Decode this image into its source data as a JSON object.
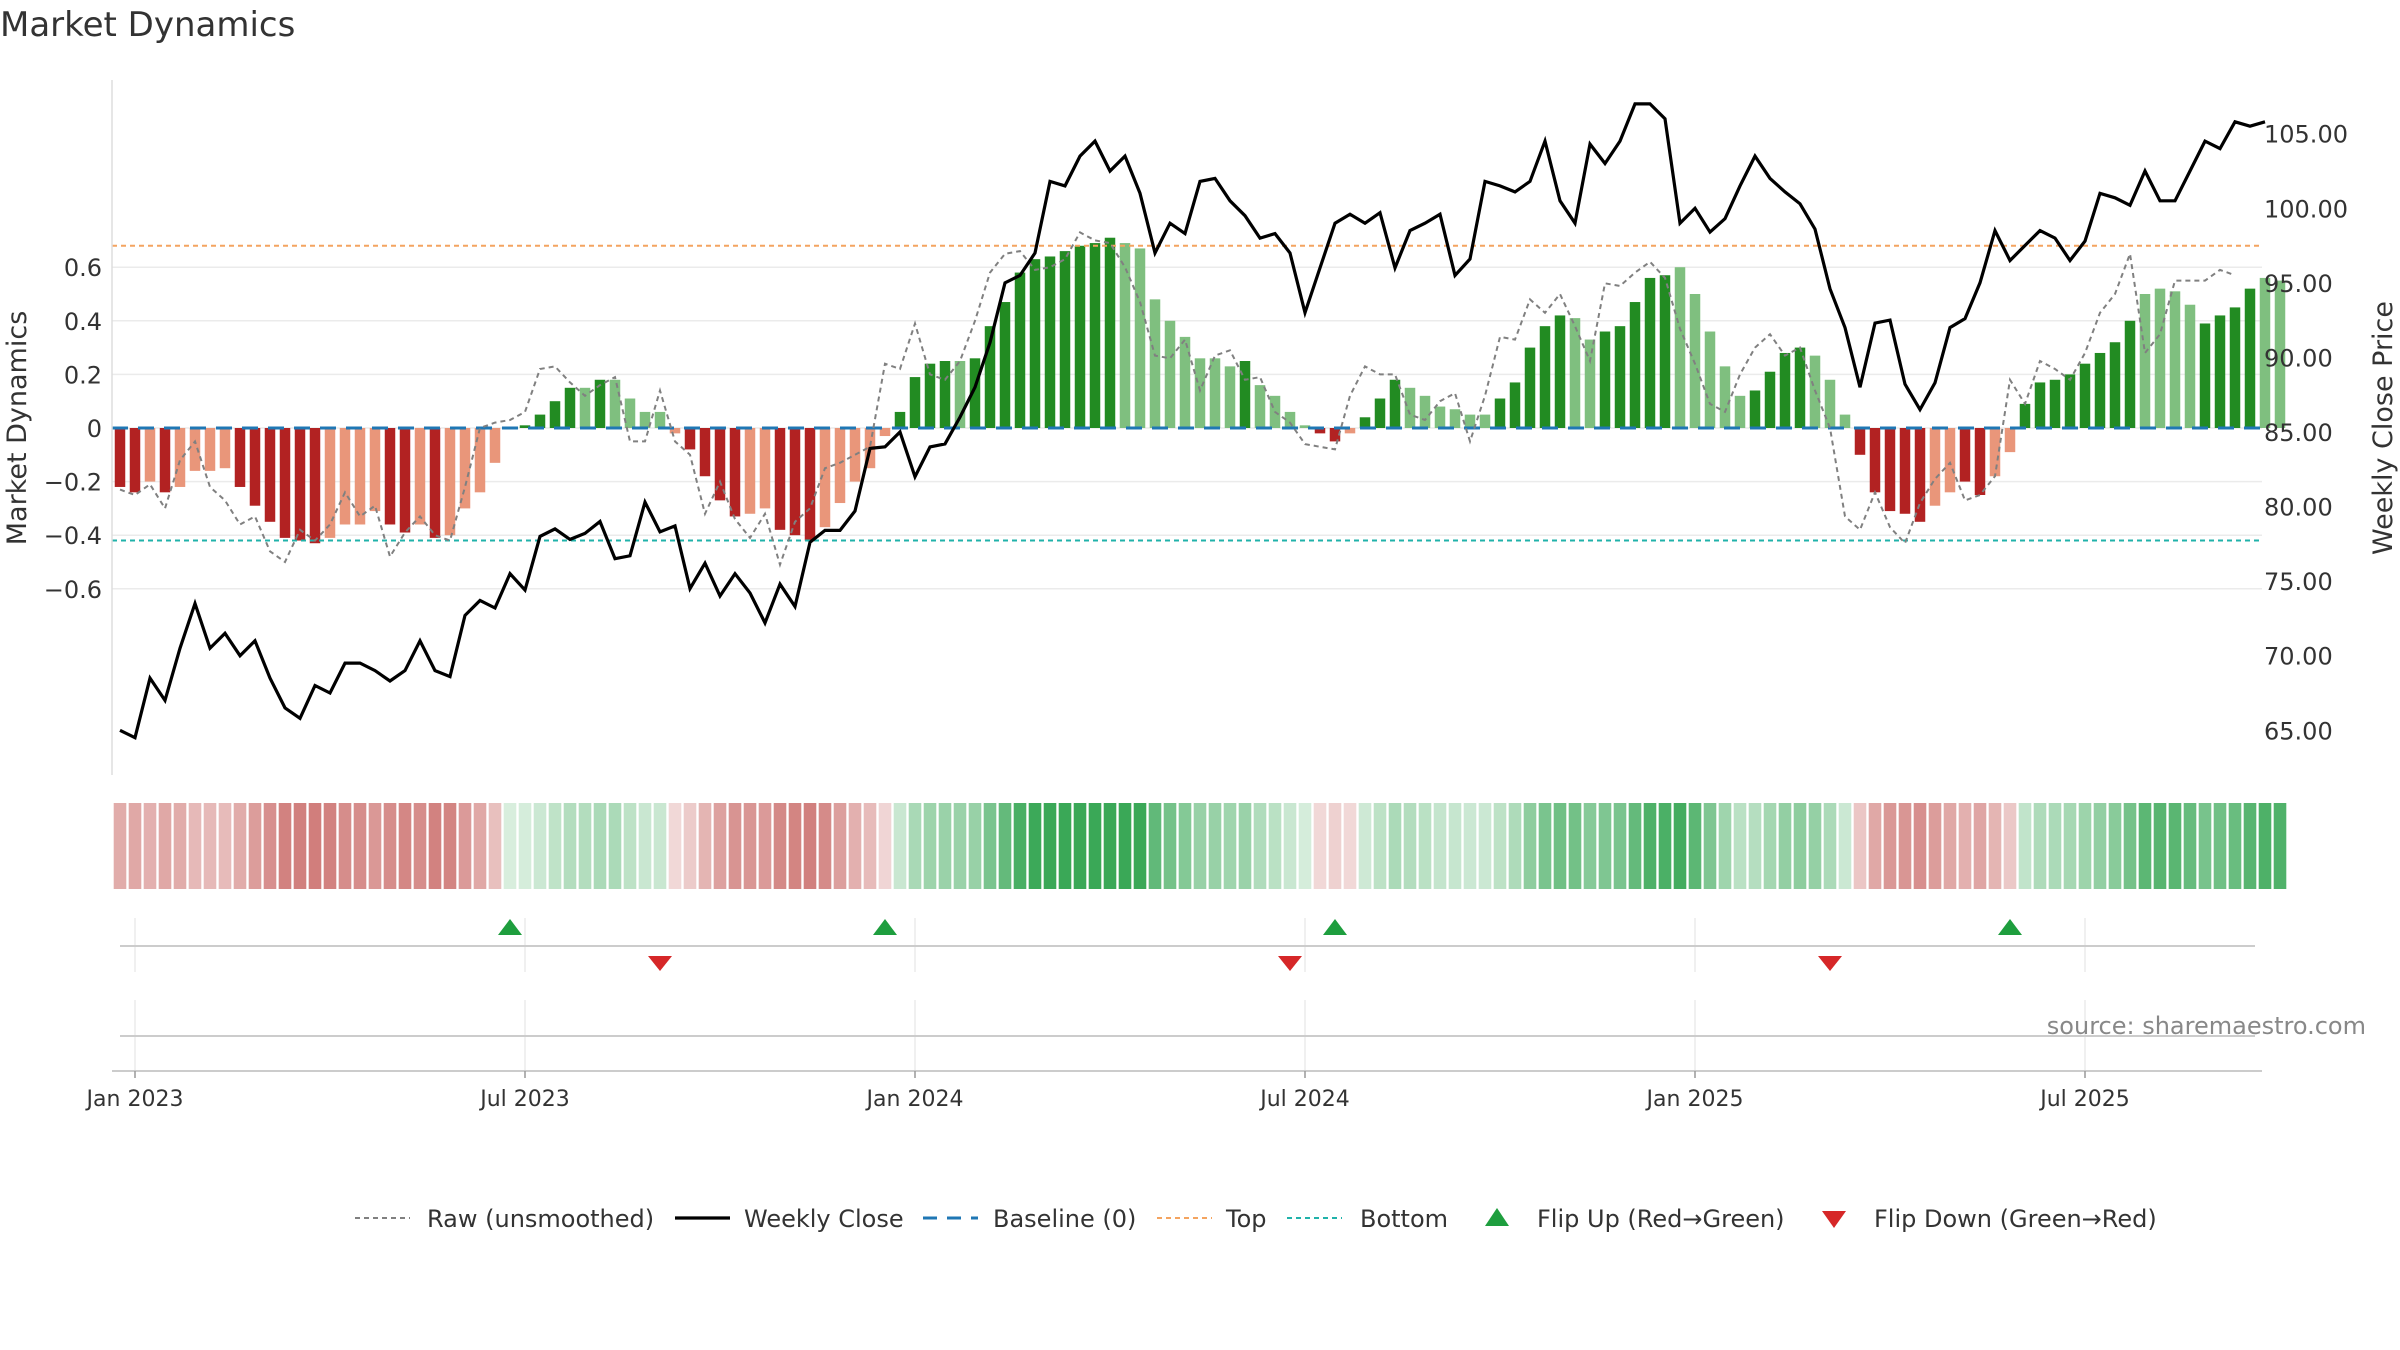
{
  "title": "Market Dynamics",
  "source": "source: sharemaestro.com",
  "colors": {
    "strong_green": "#228b22",
    "light_green": "#7fbf7f",
    "strong_red": "#b22222",
    "light_red": "#e9967a",
    "top_line": "#f4a460",
    "bottom_line": "#20b2aa",
    "baseline": "#1f77b4",
    "raw": "#808080",
    "close": "#000000",
    "flip_up": "#1e9e3e",
    "flip_down": "#d62728"
  },
  "chart_data": [
    {
      "type": "bar",
      "name": "main",
      "ylabel_left": "Market Dynamics",
      "ylabel_right": "Weekly Close Price",
      "ylim_left": [
        -0.77,
        0.77
      ],
      "ylim_right": [
        62.0,
        108.6
      ],
      "left_ticks": [
        0.6,
        0.4,
        0.2,
        0,
        -0.2,
        -0.4,
        -0.6
      ],
      "left_tick_labels": [
        "0.6",
        "0.4",
        "0.2",
        "0",
        "−0.2",
        "−0.4",
        "−0.6"
      ],
      "right_ticks": [
        105,
        100,
        95,
        90,
        85,
        80,
        75,
        70,
        65
      ],
      "right_tick_labels": [
        "105.00",
        "100.00",
        "95.00",
        "90.00",
        "85.00",
        "80.00",
        "75.00",
        "70.00",
        "65.00"
      ],
      "top_level": 0.68,
      "bottom_level": -0.42,
      "x_start_week": 0,
      "x_end_week": 143,
      "week_start_date": "2022-12-26",
      "dynamics": [
        -0.22,
        -0.24,
        -0.2,
        -0.24,
        -0.22,
        -0.16,
        -0.16,
        -0.15,
        -0.22,
        -0.29,
        -0.35,
        -0.41,
        -0.42,
        -0.43,
        -0.41,
        -0.36,
        -0.36,
        -0.31,
        -0.36,
        -0.39,
        -0.36,
        -0.41,
        -0.4,
        -0.3,
        -0.24,
        -0.13,
        0.0,
        0.01,
        0.05,
        0.1,
        0.15,
        0.15,
        0.18,
        0.18,
        0.11,
        0.06,
        0.06,
        -0.02,
        -0.08,
        -0.18,
        -0.27,
        -0.33,
        -0.32,
        -0.3,
        -0.38,
        -0.4,
        -0.42,
        -0.37,
        -0.28,
        -0.2,
        -0.15,
        -0.03,
        0.06,
        0.19,
        0.24,
        0.25,
        0.25,
        0.26,
        0.38,
        0.47,
        0.58,
        0.63,
        0.64,
        0.66,
        0.68,
        0.69,
        0.71,
        0.69,
        0.67,
        0.48,
        0.4,
        0.34,
        0.26,
        0.26,
        0.23,
        0.25,
        0.16,
        0.12,
        0.06,
        0.01,
        -0.02,
        -0.05,
        -0.02,
        0.04,
        0.11,
        0.18,
        0.15,
        0.12,
        0.08,
        0.07,
        0.05,
        0.05,
        0.11,
        0.17,
        0.3,
        0.38,
        0.42,
        0.41,
        0.33,
        0.36,
        0.38,
        0.47,
        0.56,
        0.57,
        0.6,
        0.5,
        0.36,
        0.23,
        0.12,
        0.14,
        0.21,
        0.28,
        0.3,
        0.27,
        0.18,
        0.05,
        -0.1,
        -0.24,
        -0.31,
        -0.32,
        -0.35,
        -0.29,
        -0.24,
        -0.2,
        -0.25,
        -0.18,
        -0.09,
        0.09,
        0.17,
        0.18,
        0.2,
        0.24,
        0.28,
        0.32,
        0.4,
        0.5,
        0.52,
        0.51,
        0.46,
        0.39,
        0.42,
        0.45,
        0.52,
        0.56,
        0.55
      ],
      "dynamics_shade": [
        "s",
        "s",
        "l",
        "s",
        "l",
        "l",
        "l",
        "l",
        "s",
        "s",
        "s",
        "s",
        "s",
        "s",
        "l",
        "l",
        "l",
        "l",
        "s",
        "s",
        "l",
        "s",
        "l",
        "l",
        "l",
        "l",
        "l",
        "s",
        "s",
        "s",
        "s",
        "l",
        "s",
        "l",
        "l",
        "l",
        "l",
        "l",
        "s",
        "s",
        "s",
        "s",
        "l",
        "l",
        "s",
        "s",
        "s",
        "l",
        "l",
        "l",
        "l",
        "l",
        "s",
        "s",
        "s",
        "s",
        "l",
        "s",
        "s",
        "s",
        "s",
        "s",
        "s",
        "s",
        "s",
        "s",
        "s",
        "l",
        "l",
        "l",
        "l",
        "l",
        "l",
        "l",
        "l",
        "s",
        "l",
        "l",
        "l",
        "l",
        "s",
        "s",
        "l",
        "s",
        "s",
        "s",
        "l",
        "l",
        "l",
        "l",
        "l",
        "l",
        "s",
        "s",
        "s",
        "s",
        "s",
        "l",
        "l",
        "s",
        "s",
        "s",
        "s",
        "s",
        "l",
        "l",
        "l",
        "l",
        "l",
        "s",
        "s",
        "s",
        "s",
        "l",
        "l",
        "l",
        "s",
        "s",
        "s",
        "s",
        "s",
        "l",
        "l",
        "s",
        "s",
        "l",
        "l",
        "s",
        "s",
        "s",
        "s",
        "s",
        "s",
        "s",
        "s",
        "l",
        "l",
        "l",
        "l",
        "s",
        "s",
        "s",
        "s",
        "l"
      ],
      "raw": [
        -0.23,
        -0.25,
        -0.21,
        -0.3,
        -0.12,
        -0.05,
        -0.22,
        -0.27,
        -0.36,
        -0.33,
        -0.46,
        -0.5,
        -0.38,
        -0.42,
        -0.36,
        -0.24,
        -0.33,
        -0.29,
        -0.48,
        -0.39,
        -0.33,
        -0.4,
        -0.42,
        -0.22,
        0.0,
        0.02,
        0.03,
        0.06,
        0.22,
        0.23,
        0.17,
        0.12,
        0.16,
        0.19,
        -0.05,
        -0.05,
        0.14,
        -0.05,
        -0.1,
        -0.32,
        -0.2,
        -0.34,
        -0.41,
        -0.32,
        -0.51,
        -0.35,
        -0.3,
        -0.15,
        -0.13,
        -0.1,
        -0.07,
        0.24,
        0.22,
        0.39,
        0.2,
        0.18,
        0.25,
        0.4,
        0.58,
        0.65,
        0.66,
        0.59,
        0.6,
        0.63,
        0.73,
        0.7,
        0.69,
        0.6,
        0.47,
        0.27,
        0.26,
        0.33,
        0.14,
        0.27,
        0.29,
        0.18,
        0.19,
        0.06,
        0.02,
        -0.06,
        -0.07,
        -0.08,
        0.12,
        0.23,
        0.2,
        0.2,
        0.05,
        0.03,
        0.1,
        0.13,
        -0.05,
        0.12,
        0.34,
        0.33,
        0.48,
        0.43,
        0.5,
        0.38,
        0.25,
        0.54,
        0.53,
        0.58,
        0.62,
        0.56,
        0.37,
        0.24,
        0.09,
        0.06,
        0.2,
        0.3,
        0.35,
        0.27,
        0.3,
        0.14,
        0.0,
        -0.33,
        -0.38,
        -0.24,
        -0.37,
        -0.43,
        -0.28,
        -0.19,
        -0.13,
        -0.27,
        -0.25,
        -0.18,
        0.18,
        0.09,
        0.25,
        0.22,
        0.18,
        0.28,
        0.43,
        0.5,
        0.65,
        0.28,
        0.35,
        0.55,
        0.55,
        0.55,
        0.59,
        0.57
      ],
      "weekly_close": [
        65.0,
        64.5,
        68.5,
        67.0,
        70.5,
        73.5,
        70.5,
        71.5,
        70.0,
        71.0,
        68.5,
        66.5,
        65.8,
        68.0,
        67.5,
        69.5,
        69.5,
        69.0,
        68.3,
        69.0,
        71.0,
        69.0,
        68.6,
        72.7,
        73.7,
        73.2,
        75.5,
        74.4,
        78.0,
        78.5,
        77.8,
        78.2,
        79.0,
        76.5,
        76.7,
        80.3,
        78.3,
        78.7,
        74.5,
        76.2,
        74.0,
        75.5,
        74.2,
        72.2,
        74.8,
        73.3,
        77.6,
        78.4,
        78.4,
        79.7,
        83.9,
        84.0,
        85.0,
        82.0,
        84.0,
        84.2,
        86.0,
        88.0,
        91.0,
        95.0,
        95.5,
        97.0,
        101.8,
        101.5,
        103.5,
        104.5,
        102.5,
        103.5,
        101.0,
        97.0,
        99.0,
        98.3,
        101.8,
        102.0,
        100.5,
        99.5,
        98.0,
        98.3,
        97.0,
        93.0,
        96.0,
        99.0,
        99.6,
        99.0,
        99.7,
        96.0,
        98.5,
        99.0,
        99.6,
        95.5,
        96.6,
        101.8,
        101.5,
        101.1,
        101.8,
        104.5,
        100.5,
        99.0,
        104.3,
        103.0,
        104.5,
        107.0,
        107.0,
        106.0,
        99.0,
        100.0,
        98.4,
        99.3,
        101.5,
        103.5,
        102.0,
        101.1,
        100.3,
        98.6,
        94.6,
        92.0,
        88.0,
        92.3,
        92.5,
        88.2,
        86.5,
        88.3,
        92.0,
        92.6,
        95.0,
        98.5,
        96.5,
        97.5,
        98.5,
        98.0,
        96.5,
        97.8,
        101.0,
        100.7,
        100.2,
        102.5,
        100.5,
        100.5,
        102.5,
        104.5,
        104.0,
        105.8,
        105.5,
        105.8
      ]
    },
    {
      "type": "heatmap",
      "name": "regime strip",
      "note_levels": "per-week colour strip derived from dynamics"
    },
    {
      "type": "scatter",
      "name": "flip markers",
      "flip_up_weeks": [
        26,
        51,
        81,
        126
      ],
      "flip_down_weeks": [
        36,
        78,
        114
      ]
    }
  ],
  "x_axis": {
    "ticks": [
      {
        "week": 1,
        "label": "Jan 2023"
      },
      {
        "week": 27,
        "label": "Jul 2023"
      },
      {
        "week": 53,
        "label": "Jan 2024"
      },
      {
        "week": 79,
        "label": "Jul 2024"
      },
      {
        "week": 105,
        "label": "Jan 2025"
      },
      {
        "week": 131,
        "label": "Jul 2025"
      }
    ]
  },
  "legend": [
    {
      "key": "raw",
      "label": "Raw (unsmoothed)"
    },
    {
      "key": "close",
      "label": "Weekly Close"
    },
    {
      "key": "baseline",
      "label": "Baseline (0)"
    },
    {
      "key": "top",
      "label": "Top"
    },
    {
      "key": "bottom",
      "label": "Bottom"
    },
    {
      "key": "flip_up",
      "label": "Flip Up (Red→Green)"
    },
    {
      "key": "flip_down",
      "label": "Flip Down (Green→Red)"
    }
  ]
}
